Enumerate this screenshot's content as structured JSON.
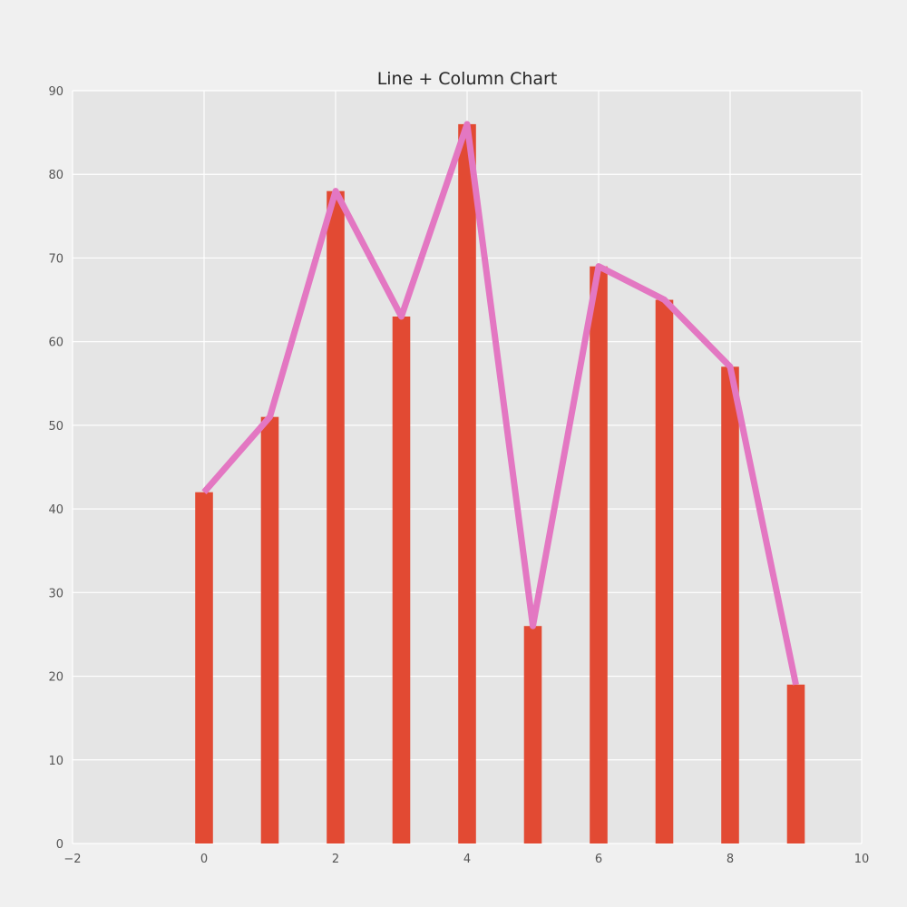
{
  "chart_data": {
    "type": "bar+line",
    "title": "Line + Column Chart",
    "xlabel": "",
    "ylabel": "",
    "x": [
      0,
      1,
      2,
      3,
      4,
      5,
      6,
      7,
      8,
      9
    ],
    "series": [
      {
        "type": "bar",
        "values": [
          42,
          51,
          78,
          63,
          86,
          26,
          69,
          65,
          57,
          19
        ],
        "color": "#e24a33"
      },
      {
        "type": "line",
        "values": [
          42,
          51,
          78,
          63,
          86,
          26,
          69,
          65,
          57,
          19
        ],
        "color": "#e377c2"
      }
    ],
    "xlim": [
      -2,
      10
    ],
    "ylim": [
      0,
      90
    ],
    "xticks": [
      -2,
      0,
      2,
      4,
      6,
      8,
      10
    ],
    "xtick_labels": [
      "−2",
      "0",
      "2",
      "4",
      "6",
      "8",
      "10"
    ],
    "yticks": [
      0,
      10,
      20,
      30,
      40,
      50,
      60,
      70,
      80,
      90
    ],
    "ytick_labels": [
      "0",
      "10",
      "20",
      "30",
      "40",
      "50",
      "60",
      "70",
      "80",
      "90"
    ],
    "grid": true,
    "colors": {
      "background": "#f0f0f0",
      "plot_area": "#e5e5e5",
      "grid": "#ffffff"
    }
  }
}
